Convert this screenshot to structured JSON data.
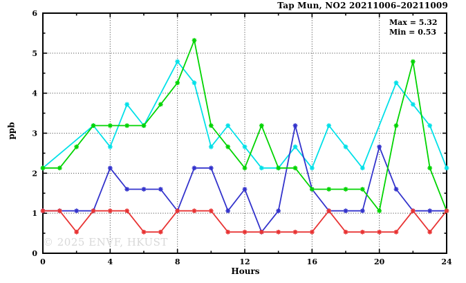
{
  "title": "Tap Mun, NO2 20211006–20211009",
  "annotation": {
    "max_label": "Max = 5.32",
    "min_label": "Min = 0.53"
  },
  "watermark": "© 2025 ENVF, HKUST",
  "colors": {
    "axis": "#000000",
    "grid": "#333333",
    "background": "#ffffff",
    "watermark_gray": "#d8d8d8"
  },
  "chart_data": {
    "type": "line",
    "title": "Tap Mun, NO2 20211006–20211009",
    "xlabel": "Hours",
    "ylabel": "ppb",
    "xlim": [
      0,
      24
    ],
    "ylim": [
      0,
      6
    ],
    "x_major_ticks": [
      0,
      4,
      8,
      12,
      16,
      20,
      24
    ],
    "x_minor_step": 2,
    "y_major_ticks": [
      0,
      1,
      2,
      3,
      4,
      5,
      6
    ],
    "y_minor_step": 0.5,
    "grid": "dotted lines at x and y major ticks, ticks mirrored on top and right axes",
    "legend_position": "none",
    "marker": "star",
    "max": 5.32,
    "min": 0.53,
    "x": [
      0,
      1,
      2,
      3,
      4,
      5,
      6,
      7,
      8,
      9,
      10,
      11,
      12,
      13,
      14,
      15,
      16,
      17,
      18,
      19,
      20,
      21,
      22,
      23,
      24
    ],
    "series": [
      {
        "name": "series-cyan",
        "color": "#00e0e8",
        "values": [
          2.13,
          null,
          null,
          3.19,
          2.66,
          3.72,
          3.19,
          null,
          4.79,
          4.26,
          2.66,
          3.19,
          2.66,
          2.13,
          2.13,
          2.66,
          2.13,
          3.19,
          2.66,
          2.13,
          null,
          4.26,
          3.72,
          3.19,
          2.13
        ]
      },
      {
        "name": "series-blue",
        "color": "#3333cc",
        "values": [
          1.06,
          1.06,
          1.06,
          1.06,
          2.13,
          1.6,
          1.6,
          1.6,
          1.06,
          2.13,
          2.13,
          1.06,
          1.6,
          0.53,
          1.06,
          3.19,
          1.6,
          1.06,
          1.06,
          1.06,
          2.66,
          1.6,
          1.06,
          1.06,
          1.06
        ]
      },
      {
        "name": "series-green",
        "color": "#00d400",
        "values": [
          2.13,
          2.13,
          2.66,
          3.19,
          3.19,
          3.19,
          3.19,
          3.72,
          4.26,
          5.32,
          3.19,
          2.66,
          2.13,
          3.19,
          2.13,
          2.13,
          1.6,
          1.6,
          1.6,
          1.6,
          1.06,
          3.19,
          4.79,
          2.13,
          1.06
        ]
      },
      {
        "name": "series-red",
        "color": "#e83333",
        "values": [
          1.06,
          1.06,
          0.53,
          1.06,
          1.06,
          1.06,
          0.53,
          0.53,
          1.06,
          1.06,
          1.06,
          0.53,
          0.53,
          0.53,
          0.53,
          0.53,
          0.53,
          1.06,
          0.53,
          0.53,
          0.53,
          0.53,
          1.06,
          0.53,
          1.06
        ]
      }
    ]
  }
}
